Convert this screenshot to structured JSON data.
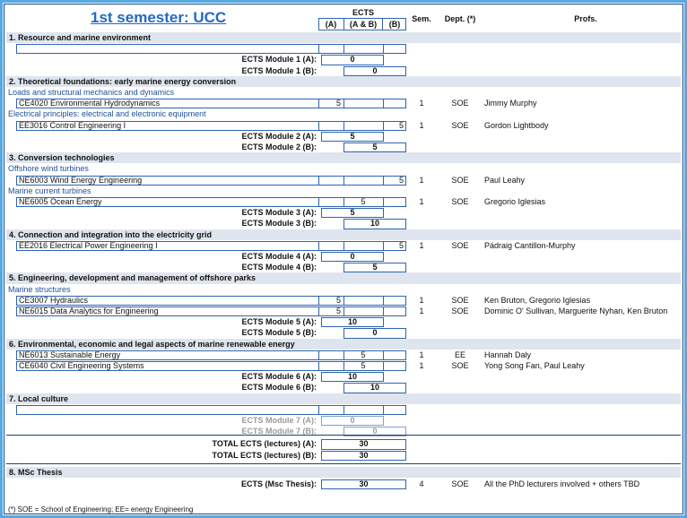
{
  "header": {
    "title": "1st semester: UCC",
    "ects": "ECTS",
    "col_a": "(A)",
    "col_ab": "(A & B)",
    "col_b": "(B)",
    "sem": "Sem.",
    "dept": "Dept. (*)",
    "profs": "Profs."
  },
  "sections": [
    {
      "title": "1. Resource and marine environment",
      "groups": [
        {
          "courses": [
            {
              "name": null,
              "a": null,
              "ab": null,
              "b": null,
              "sem": null,
              "dept": null,
              "profs": null
            }
          ]
        }
      ],
      "module_a": {
        "label": "ECTS Module 1 (A):",
        "value": 0
      },
      "module_b": {
        "label": "ECTS Module 1 (B):",
        "value": 0
      }
    },
    {
      "title": "2. Theoretical foundations: early marine energy conversion",
      "groups": [
        {
          "subtitle": "Loads and structural mechanics and dynamics",
          "courses": [
            {
              "name": "CE4020 Environmental Hydrodynamics",
              "a": 5,
              "ab": null,
              "b": null,
              "sem": 1,
              "dept": "SOE",
              "profs": "Jimmy Murphy"
            }
          ]
        },
        {
          "subtitle": "Electrical principles: electrical and electronic equipment",
          "courses": [
            {
              "name": "EE3016 Control Engineering I",
              "a": null,
              "ab": null,
              "b": 5,
              "sem": 1,
              "dept": "SOE",
              "profs": "Gordon Lightbody"
            }
          ]
        }
      ],
      "module_a": {
        "label": "ECTS Module 2 (A):",
        "value": 5
      },
      "module_b": {
        "label": "ECTS Module 2 (B):",
        "value": 5
      }
    },
    {
      "title": "3. Conversion technologies",
      "groups": [
        {
          "subtitle": "Offshore wind turbines",
          "courses": [
            {
              "name": "NE6003 Wind Energy Engineering",
              "a": null,
              "ab": null,
              "b": 5,
              "sem": 1,
              "dept": "SOE",
              "profs": "Paul Leahy"
            }
          ]
        },
        {
          "subtitle": "Marine current turbines",
          "courses": [
            {
              "name": "NE6005 Ocean Energy",
              "a": null,
              "ab": 5,
              "b": null,
              "sem": 1,
              "dept": "SOE",
              "profs": "Gregorio Iglesias"
            }
          ]
        }
      ],
      "module_a": {
        "label": "ECTS Module 3 (A):",
        "value": 5
      },
      "module_b": {
        "label": "ECTS Module 3 (B):",
        "value": 10
      }
    },
    {
      "title": "4. Connection and integration into the electricity grid",
      "groups": [
        {
          "courses": [
            {
              "name": "EE2016 Electrical Power Engineering I",
              "a": null,
              "ab": null,
              "b": 5,
              "sem": 1,
              "dept": "SOE",
              "profs": "Pádraig Cantillon-Murphy"
            }
          ]
        }
      ],
      "module_a": {
        "label": "ECTS Module 4 (A):",
        "value": 0
      },
      "module_b": {
        "label": "ECTS Module 4 (B):",
        "value": 5
      }
    },
    {
      "title": "5. Engineering, development and management of offshore parks",
      "groups": [
        {
          "subtitle": "Marine structures",
          "courses": [
            {
              "name": "CE3007 Hydraulics",
              "a": 5,
              "ab": null,
              "b": null,
              "sem": 1,
              "dept": "SOE",
              "profs": "Ken Bruton, Gregorio Iglesias"
            },
            {
              "name": "NE6015 Data Analytics for Engineering",
              "a": 5,
              "ab": null,
              "b": null,
              "sem": 1,
              "dept": "SOE",
              "profs": "Dominic O' Sullivan, Marguerite Nyhan, Ken Bruton"
            }
          ]
        }
      ],
      "module_a": {
        "label": "ECTS Module 5 (A):",
        "value": 10
      },
      "module_b": {
        "label": "ECTS Module 5 (B):",
        "value": 0
      }
    },
    {
      "title": "6. Environmental, economic and legal aspects of marine renewable energy",
      "groups": [
        {
          "courses": [
            {
              "name": "NE6013 Sustainable Energy",
              "a": null,
              "ab": 5,
              "b": null,
              "sem": 1,
              "dept": "EE",
              "profs": "Hannah Daly"
            },
            {
              "name": "CE6040 Civil Engineering Systems",
              "a": null,
              "ab": 5,
              "b": null,
              "sem": 1,
              "dept": "SOE",
              "profs": "Yong Song Fan, Paul Leahy"
            }
          ]
        }
      ],
      "module_a": {
        "label": "ECTS Module 6 (A):",
        "value": 10
      },
      "module_b": {
        "label": "ECTS Module 6 (B):",
        "value": 10
      }
    },
    {
      "title": "7. Local culture",
      "groups": [
        {
          "courses": [
            {
              "name": null,
              "a": null,
              "ab": null,
              "b": null,
              "sem": null,
              "dept": null,
              "profs": null
            }
          ]
        }
      ],
      "module_a": {
        "label": "ECTS Module 7 (A):",
        "value": 0
      },
      "module_b": {
        "label": "ECTS Module 7 (B):",
        "value": 0
      }
    }
  ],
  "totals": [
    {
      "label": "TOTAL ECTS (lectures) (A):",
      "value": 30
    },
    {
      "label": "TOTAL ECTS (lectures) (B):",
      "value": 30
    }
  ],
  "thesis": {
    "title": "8. MSc Thesis",
    "label": "ECTS (Msc Thesis):",
    "value": 30,
    "sem": 4,
    "dept": "SOE",
    "profs": "All the PhD lecturers involved + others TBD"
  },
  "footnote": "(*) SOE = School of Engineering; EE= energy Engineering"
}
